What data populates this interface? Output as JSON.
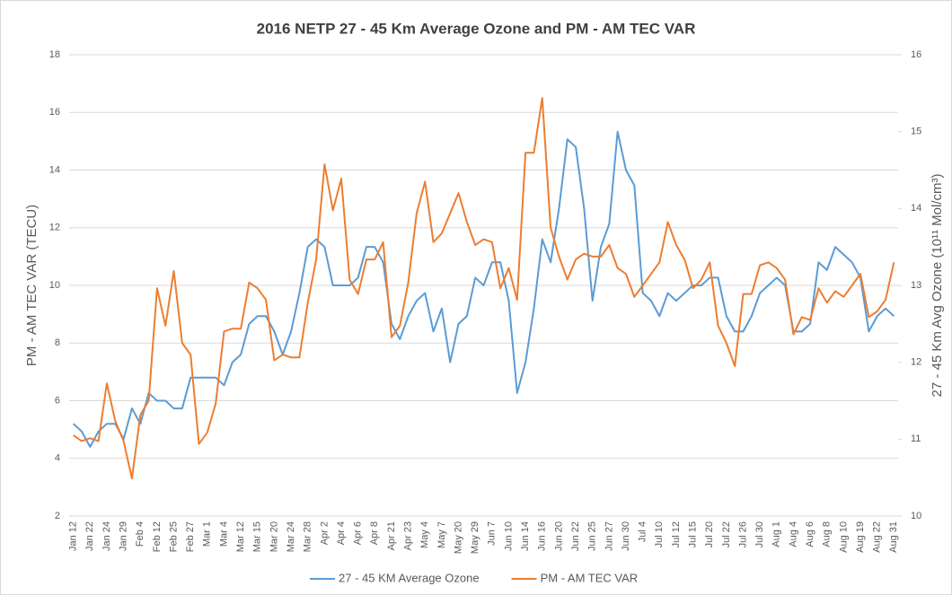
{
  "chart_data": {
    "type": "line",
    "title": "2016 NETP 27 - 45  Km Average Ozone and PM - AM TEC VAR",
    "y_label": "PM - AM TEC VAR (TECU)",
    "y2_label": "27 - 45 Km Avg Ozone (10¹¹ Mol/cm³)",
    "categories": [
      "Jan 12",
      null,
      "Jan 22",
      null,
      "Jan 24",
      null,
      "Jan 29",
      null,
      "Feb 4",
      null,
      "Feb 12",
      null,
      "Feb 25",
      null,
      "Feb 27",
      null,
      "Mar 1",
      null,
      "Mar 4",
      null,
      "Mar 12",
      null,
      "Mar 15",
      null,
      "Mar 20",
      null,
      "Mar 24",
      null,
      "Mar 28",
      null,
      "Apr 2",
      null,
      "Apr 4",
      null,
      "Apr 6",
      null,
      "Apr 8",
      null,
      "Apr 21",
      null,
      "Apr 23",
      null,
      "May 4",
      null,
      "May 7",
      null,
      "May 20",
      null,
      "May 29",
      null,
      "Jun 7",
      null,
      "Jun 10",
      null,
      "Jun 14",
      null,
      "Jun 16",
      null,
      "Jun 20",
      null,
      "Jun 22",
      null,
      "Jun 25",
      null,
      "Jun 27",
      null,
      "Jun 30",
      null,
      "Jul 4",
      null,
      "Jul 10",
      null,
      "Jul 12",
      null,
      "Jul 15",
      null,
      "Jul 20",
      null,
      "Jul 22",
      null,
      "Jul 26",
      null,
      "Jul 30",
      null,
      "Aug 1",
      null,
      "Aug 4",
      null,
      "Aug 6",
      null,
      "Aug 8",
      null,
      "Aug 10",
      null,
      "Aug 19",
      null,
      "Aug 22",
      null,
      "Aug 31"
    ],
    "series": [
      {
        "name": "27 - 45 KM Average Ozone",
        "color": "#5b9bd5",
        "axis": "y2",
        "values": [
          11.2,
          11.1,
          10.9,
          11.1,
          11.2,
          11.2,
          11.0,
          11.4,
          11.2,
          11.6,
          11.5,
          11.5,
          11.4,
          11.4,
          11.8,
          11.8,
          11.8,
          11.8,
          11.7,
          12.0,
          12.1,
          12.5,
          12.6,
          12.6,
          12.4,
          12.1,
          12.4,
          12.9,
          13.5,
          13.6,
          13.5,
          13.0,
          13.0,
          13.0,
          13.1,
          13.5,
          13.5,
          13.3,
          12.5,
          12.3,
          12.6,
          12.8,
          12.9,
          12.4,
          12.7,
          12.0,
          12.5,
          12.6,
          13.1,
          13.0,
          13.3,
          13.3,
          12.8,
          11.6,
          12.0,
          12.7,
          13.6,
          13.3,
          14.0,
          14.9,
          14.8,
          14.0,
          12.8,
          13.5,
          13.8,
          15.0,
          14.5,
          14.3,
          12.9,
          12.8,
          12.6,
          12.9,
          12.8,
          12.9,
          13.0,
          13.0,
          13.1,
          13.1,
          12.6,
          12.4,
          12.4,
          12.6,
          12.9,
          13.0,
          13.1,
          13.0,
          12.4,
          12.4,
          12.5,
          13.3,
          13.2,
          13.5,
          13.4,
          13.3,
          13.1,
          12.4,
          12.6,
          12.7,
          12.6
        ]
      },
      {
        "name": "PM - AM TEC VAR",
        "color": "#ed7d31",
        "values": [
          4.8,
          4.6,
          4.7,
          4.6,
          6.6,
          5.3,
          4.6,
          3.3,
          5.5,
          6.0,
          9.9,
          8.6,
          10.5,
          8.0,
          7.6,
          4.5,
          4.9,
          5.9,
          8.4,
          8.5,
          8.5,
          10.1,
          9.9,
          9.5,
          7.4,
          7.6,
          7.5,
          7.5,
          9.4,
          10.9,
          14.2,
          12.6,
          13.7,
          10.2,
          9.7,
          10.9,
          10.9,
          11.5,
          8.2,
          8.6,
          10.1,
          12.5,
          13.6,
          11.5,
          11.8,
          12.5,
          13.2,
          12.2,
          11.4,
          11.6,
          11.5,
          9.9,
          10.6,
          9.5,
          14.6,
          14.6,
          16.5,
          12.0,
          11.0,
          10.2,
          10.9,
          11.1,
          11.0,
          11.0,
          11.4,
          10.6,
          10.4,
          9.6,
          10.0,
          10.4,
          10.8,
          12.2,
          11.4,
          10.9,
          9.9,
          10.2,
          10.8,
          8.6,
          8.0,
          7.2,
          9.7,
          9.7,
          10.7,
          10.8,
          10.6,
          10.2,
          8.3,
          8.9,
          8.8,
          9.9,
          9.4,
          9.8,
          9.6,
          10.0,
          10.4,
          8.9,
          9.1,
          9.5,
          10.8
        ]
      }
    ],
    "ylim": [
      2,
      18
    ],
    "yticks": [
      2,
      4,
      6,
      8,
      10,
      12,
      14,
      16,
      18
    ],
    "y2lim": [
      10,
      16
    ],
    "y2ticks": [
      10,
      11,
      12,
      13,
      14,
      15,
      16
    ],
    "grid": true,
    "legend": "bottom"
  }
}
